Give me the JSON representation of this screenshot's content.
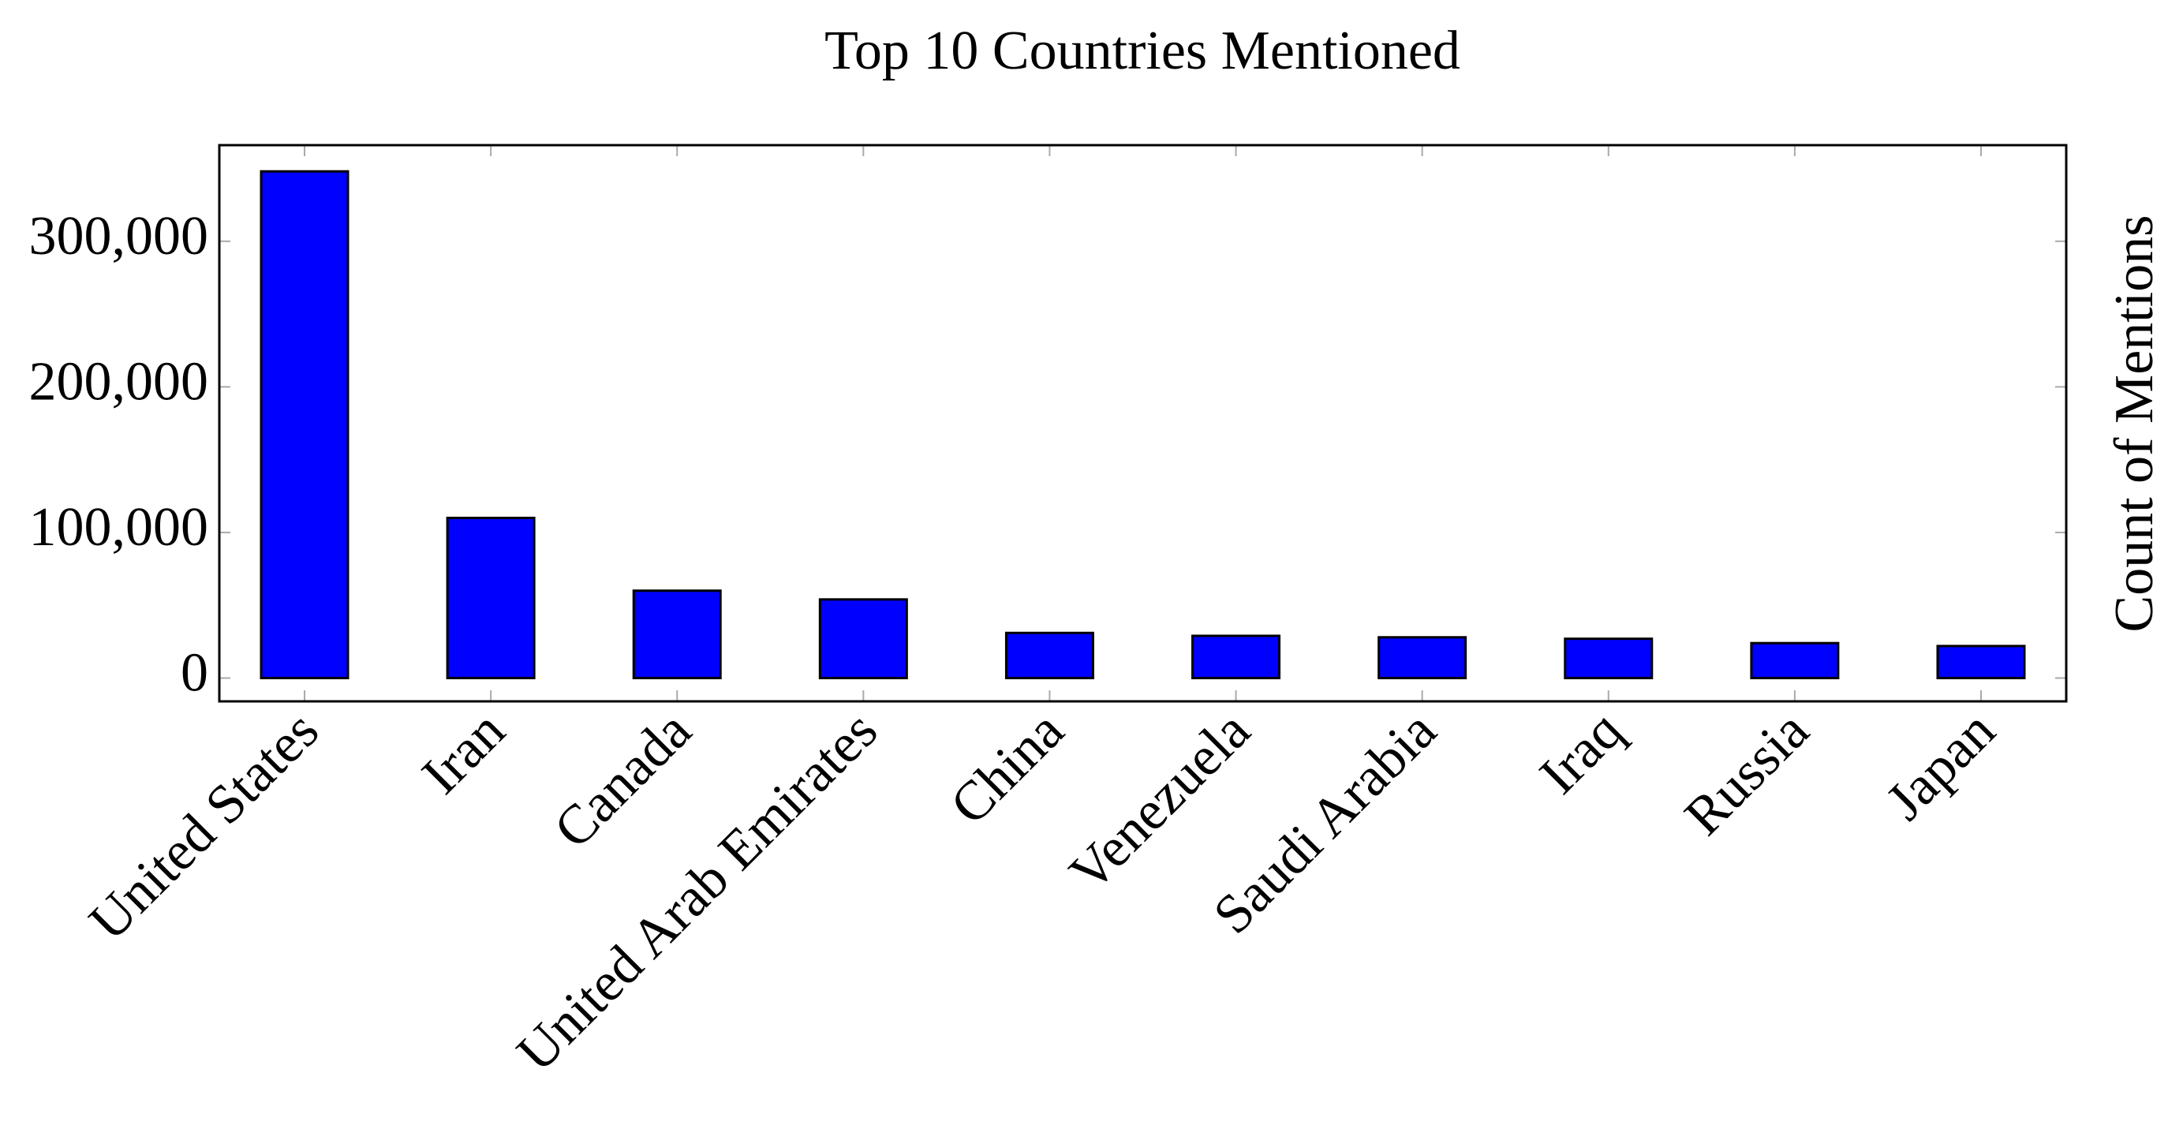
{
  "chart_data": {
    "type": "bar",
    "title": "Top 10 Countries Mentioned",
    "y_label": "Count of Mentions",
    "categories": [
      "United States",
      "Iran",
      "Canada",
      "United Arab Emirates",
      "China",
      "Venezuela",
      "Saudi Arabia",
      "Iraq",
      "Russia",
      "Japan"
    ],
    "values": [
      348000,
      110000,
      60000,
      54000,
      31000,
      29000,
      28000,
      27000,
      24000,
      22000
    ],
    "color": "#0000ff",
    "ylim": [
      -16000,
      366000
    ],
    "yticks": [
      0,
      {
        "value": 100000,
        "label": "100,000"
      },
      {
        "value": 200000,
        "label": "200,000"
      },
      {
        "value": 300000,
        "label": "300,000"
      }
    ],
    "grid": false
  }
}
